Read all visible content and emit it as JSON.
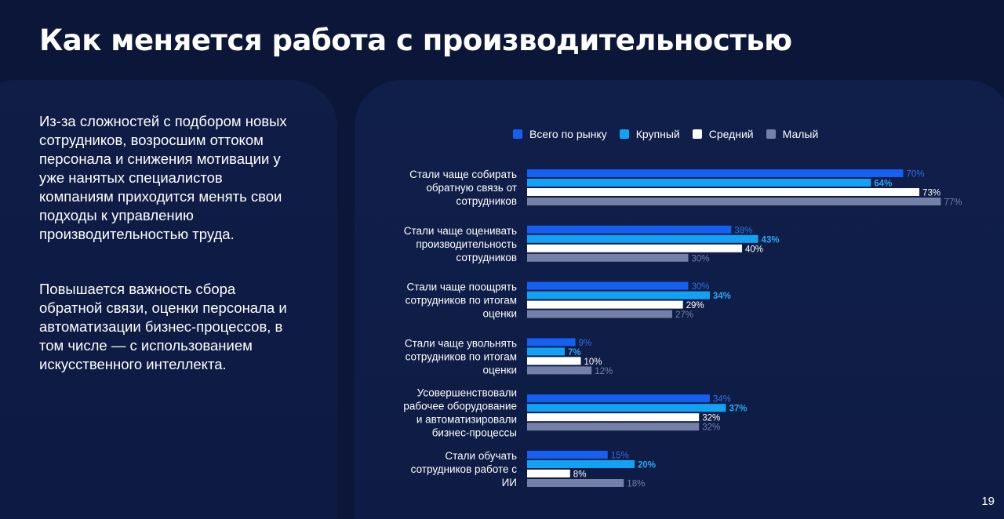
{
  "slide": {
    "title": "Как меняется работа с производительностью",
    "page_number": "19"
  },
  "left_text": {
    "paragraph1": "Из-за сложностей с подбором новых сотрудников, возросшим оттоком персонала и снижения мотивации у уже нанятых специалистов компаниям приходится менять свои подходы к управлению производительностью труда.",
    "paragraph2": "Повышается важность сбора обратной связи, оценки персонала и автоматизации бизнес-процессов, в том числе — с использованием искусственного интеллекта."
  },
  "chart_data": {
    "type": "bar",
    "orientation": "horizontal",
    "title": "",
    "xlabel": "",
    "ylabel": "",
    "unit": "%",
    "legend_position": "top",
    "grid": false,
    "categories": [
      [
        "Стали чаще собирать",
        "обратную связь от",
        "сотрудников"
      ],
      [
        "Стали чаще оценивать",
        "производительность",
        "сотрудников"
      ],
      [
        "Стали чаще поощрять",
        "сотрудников по итогам",
        "оценки"
      ],
      [
        "Стали чаще увольнять",
        "сотрудников по итогам",
        "оценки"
      ],
      [
        "Усовершенствовали",
        "рабочее оборудование",
        "и автоматизировали",
        "бизнес-процессы"
      ],
      [
        "Стали обучать",
        "сотрудников работе с",
        "ИИ"
      ]
    ],
    "series": [
      {
        "name": "Всего по рынку",
        "color": "#1560f0",
        "label_color": "#2f6fe8",
        "values": [
          70,
          38,
          30,
          9,
          34,
          15
        ]
      },
      {
        "name": "Крупный",
        "color": "#12a2f5",
        "label_color": "#2aa8f5",
        "values": [
          64,
          43,
          34,
          7,
          37,
          20
        ]
      },
      {
        "name": "Средний",
        "color": "#ffffff",
        "label_color": "#ffffff",
        "values": [
          73,
          40,
          29,
          10,
          32,
          8
        ]
      },
      {
        "name": "Малый",
        "color": "#7480a8",
        "label_color": "#7480a8",
        "values": [
          77,
          30,
          27,
          12,
          32,
          18
        ]
      }
    ]
  }
}
